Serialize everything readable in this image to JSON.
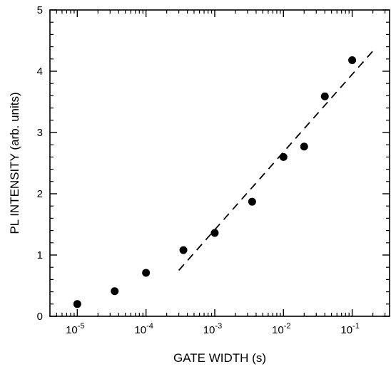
{
  "chart_data": {
    "type": "scatter",
    "title": "",
    "xlabel": "GATE WIDTH (s)",
    "ylabel": "PL INTENSITY (arb. units)",
    "x_scale": "log",
    "xlim": [
      4e-06,
      0.35
    ],
    "ylim": [
      0,
      5
    ],
    "x_ticks": [
      {
        "value": 1e-05,
        "base": "10",
        "exp": "-5"
      },
      {
        "value": 0.0001,
        "base": "10",
        "exp": "-4"
      },
      {
        "value": 0.001,
        "base": "10",
        "exp": "-3"
      },
      {
        "value": 0.01,
        "base": "10",
        "exp": "-2"
      },
      {
        "value": 0.1,
        "base": "10",
        "exp": "-1"
      }
    ],
    "y_ticks": [
      {
        "value": 0,
        "label": "0"
      },
      {
        "value": 1,
        "label": "1"
      },
      {
        "value": 2,
        "label": "2"
      },
      {
        "value": 3,
        "label": "3"
      },
      {
        "value": 4,
        "label": "4"
      },
      {
        "value": 5,
        "label": "5"
      }
    ],
    "grid": false,
    "series": [
      {
        "marker": "filled-circle",
        "color": "#000000",
        "points": [
          {
            "x": 1e-05,
            "y": 0.2
          },
          {
            "x": 3.5e-05,
            "y": 0.41
          },
          {
            "x": 0.0001,
            "y": 0.71
          },
          {
            "x": 0.00035,
            "y": 1.08
          },
          {
            "x": 0.001,
            "y": 1.36
          },
          {
            "x": 0.0035,
            "y": 1.87
          },
          {
            "x": 0.01,
            "y": 2.6
          },
          {
            "x": 0.02,
            "y": 2.77
          },
          {
            "x": 0.04,
            "y": 3.59
          },
          {
            "x": 0.1,
            "y": 4.18
          }
        ]
      }
    ],
    "fit_line": {
      "style": "dashed",
      "color": "#000000",
      "points": [
        {
          "x": 0.0003,
          "y": 0.75
        },
        {
          "x": 0.2,
          "y": 4.33
        }
      ]
    }
  }
}
